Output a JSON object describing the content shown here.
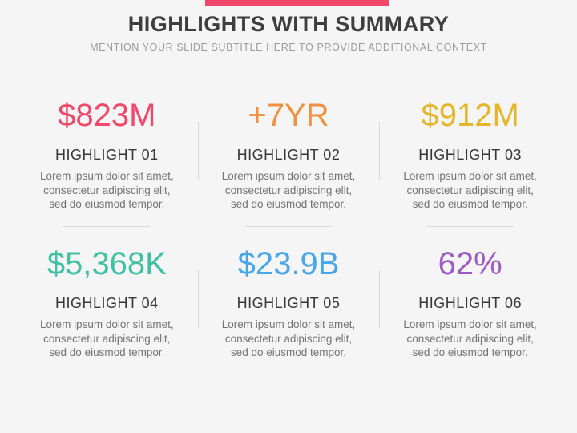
{
  "slide": {
    "title": "HIGHLIGHTS WITH SUMMARY",
    "subtitle": "MENTION YOUR SLIDE SUBTITLE HERE TO PROVIDE ADDITIONAL CONTEXT"
  },
  "colors": {
    "accent_bar": "#f0476b",
    "title_text": "#3e3e3e",
    "subtitle_text": "#9c9c9c",
    "divider": "#d9d9d9",
    "body_text": "#737373"
  },
  "highlights": [
    {
      "value": "$823M",
      "color": "#f0476b",
      "label": "HIGHLIGHT 01",
      "desc": "Lorem ipsum dolor sit amet,\nconsectetur adipiscing elit,\nsed do eiusmod tempor."
    },
    {
      "value": "+7YR",
      "color": "#ef913e",
      "label": "HIGHLIGHT 02",
      "desc": "Lorem ipsum dolor sit amet,\nconsectetur adipiscing elit,\nsed do eiusmod tempor."
    },
    {
      "value": "$912M",
      "color": "#e4b62b",
      "label": "HIGHLIGHT 03",
      "desc": "Lorem ipsum dolor sit amet,\nconsectetur adipiscing elit,\nsed do eiusmod tempor."
    },
    {
      "value": "$5,368K",
      "color": "#42c0a2",
      "label": "HIGHLIGHT 04",
      "desc": "Lorem ipsum dolor sit amet,\nconsectetur adipiscing elit,\nsed do eiusmod tempor."
    },
    {
      "value": "$23.9B",
      "color": "#47a7ea",
      "label": "HIGHLIGHT 05",
      "desc": "Lorem ipsum dolor sit amet,\nconsectetur adipiscing elit,\nsed do eiusmod tempor."
    },
    {
      "value": "62%",
      "color": "#9d5bc6",
      "label": "HIGHLIGHT 06",
      "desc": "Lorem ipsum dolor sit amet,\nconsectetur adipiscing elit,\nsed do eiusmod tempor."
    }
  ]
}
